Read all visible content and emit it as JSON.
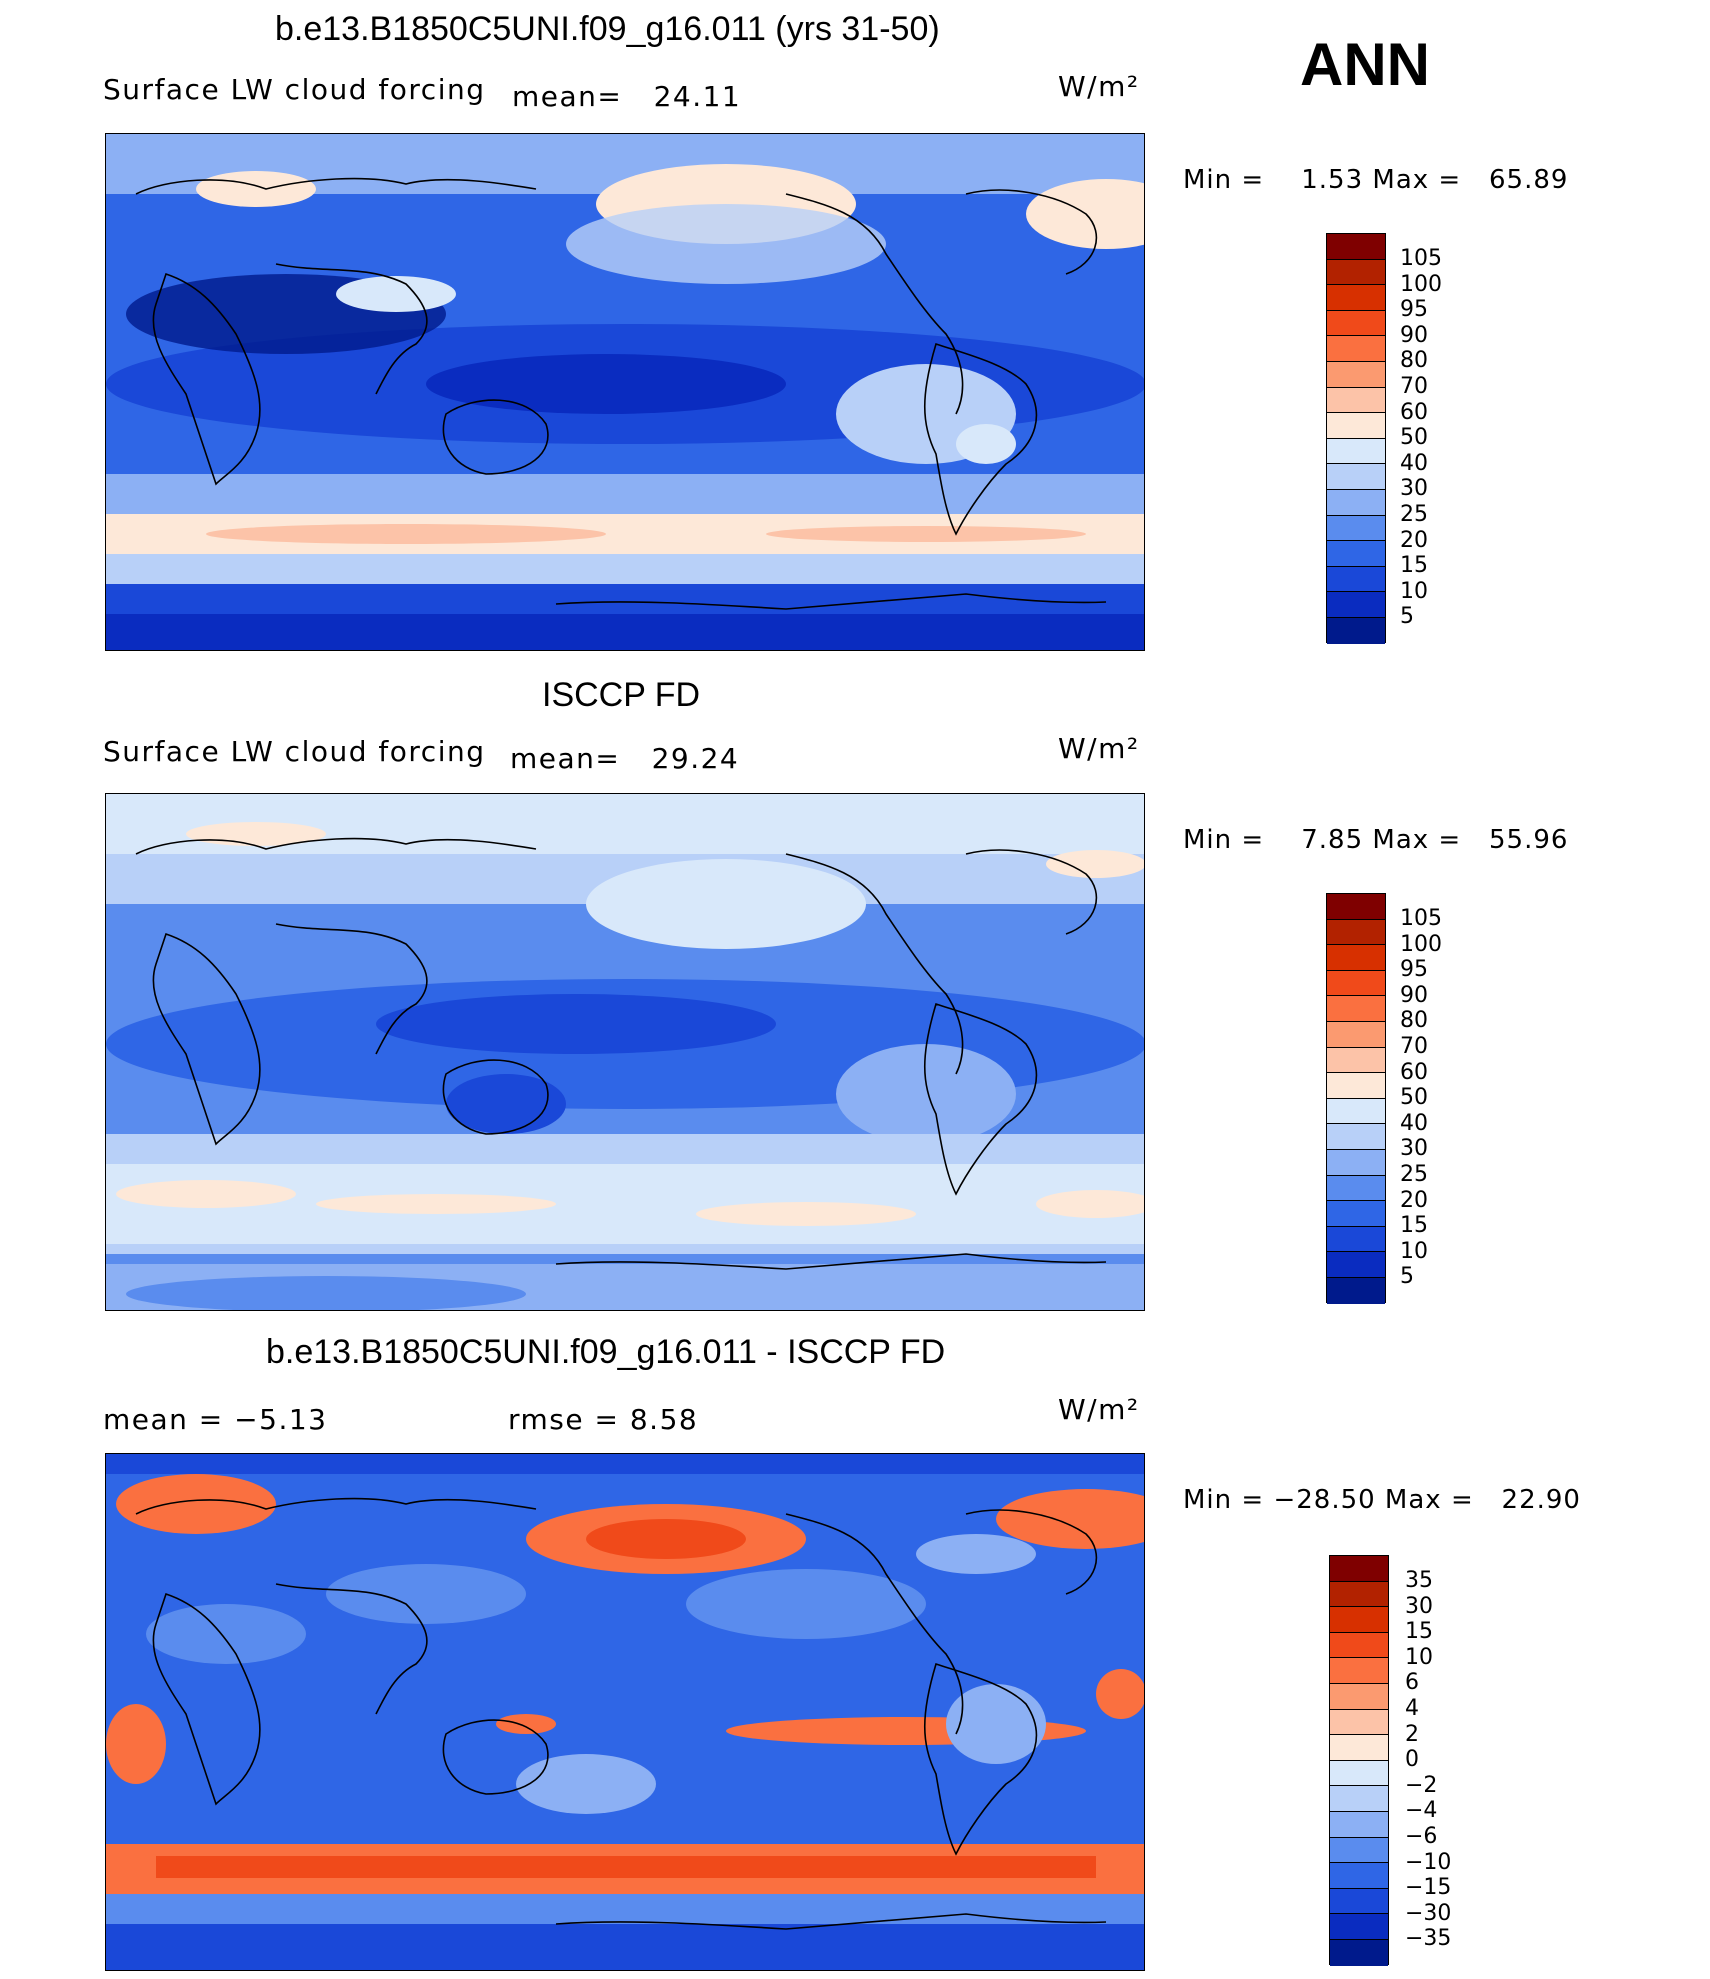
{
  "season": "ANN",
  "panels": [
    {
      "title": "b.e13.B1850C5UNI.f09_g16.011 (yrs 31-50)",
      "left_label": "Surface LW cloud forcing",
      "mean_label": "mean=",
      "mean_value": "24.11",
      "units": "W/m²",
      "min_max": "Min =    1.53 Max =   65.89",
      "colorbar_labels": [
        "105",
        "100",
        "95",
        "90",
        "80",
        "70",
        "60",
        "50",
        "40",
        "30",
        "25",
        "20",
        "15",
        "10",
        "5"
      ]
    },
    {
      "title": "ISCCP FD",
      "left_label": "Surface LW cloud forcing",
      "mean_label": "mean=",
      "mean_value": "29.24",
      "units": "W/m²",
      "min_max": "Min =    7.85 Max =   55.96",
      "colorbar_labels": [
        "105",
        "100",
        "95",
        "90",
        "80",
        "70",
        "60",
        "50",
        "40",
        "30",
        "25",
        "20",
        "15",
        "10",
        "5"
      ]
    },
    {
      "title": "b.e13.B1850C5UNI.f09_g16.011 - ISCCP FD",
      "mean_text": "mean =   −5.13",
      "rmse_text": "rmse =    8.58",
      "units": "W/m²",
      "min_max": "Min = −28.50 Max =   22.90",
      "colorbar_labels": [
        "35",
        "30",
        "15",
        "10",
        "6",
        "4",
        "2",
        "0",
        "−2",
        "−4",
        "−6",
        "−10",
        "−15",
        "−30",
        "−35"
      ]
    }
  ],
  "colors": {
    "abs_scale": [
      "#7f0000",
      "#b22200",
      "#d73000",
      "#f04a1a",
      "#fa7040",
      "#fb9a70",
      "#fcc3a8",
      "#fde8d8",
      "#d8e8fa",
      "#b8d0f8",
      "#8cb0f4",
      "#5a8cee",
      "#2f66e6",
      "#1a48d8",
      "#0a2cc0",
      "#001a8c"
    ],
    "diff_scale": [
      "#7f0000",
      "#b22200",
      "#d73000",
      "#f04a1a",
      "#fa7040",
      "#fb9a70",
      "#fcc3a8",
      "#fde8d8",
      "#d8e8fa",
      "#b8d0f8",
      "#8cb0f4",
      "#5a8cee",
      "#2f66e6",
      "#1a48d8",
      "#0a2cc0",
      "#001a8c"
    ]
  }
}
